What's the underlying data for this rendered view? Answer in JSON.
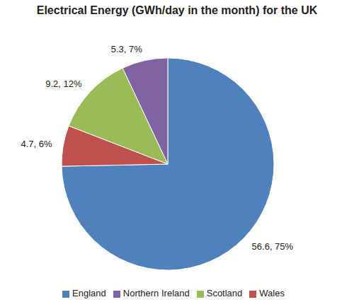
{
  "chart_data": {
    "type": "pie",
    "title": "Electrical Energy (GWh/day in the month) for the UK",
    "categories": [
      "England",
      "Wales",
      "Scotland",
      "Northern Ireland"
    ],
    "values": [
      56.6,
      4.7,
      9.2,
      5.3
    ],
    "value_labels": [
      "56.6, 75%",
      "4.7, 6%",
      "9.2, 12%",
      "5.3, 7%"
    ],
    "colors": [
      "#4f81bd",
      "#c0504d",
      "#9bbb59",
      "#8064a2"
    ],
    "legend": "bottom"
  }
}
